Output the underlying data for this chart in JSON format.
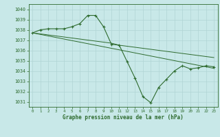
{
  "xlabel": "Graphe pression niveau de la mer (hPa)",
  "x": [
    0,
    1,
    2,
    3,
    4,
    5,
    6,
    7,
    8,
    9,
    10,
    11,
    12,
    13,
    14,
    15,
    16,
    17,
    18,
    19,
    20,
    21,
    22,
    23
  ],
  "y_main": [
    1037.7,
    1038.0,
    1038.1,
    1038.1,
    1038.1,
    1038.3,
    1038.6,
    1039.4,
    1039.4,
    1038.3,
    1036.6,
    1036.5,
    1034.9,
    1033.3,
    1031.5,
    1030.9,
    1032.4,
    1033.2,
    1034.0,
    1034.5,
    1034.2,
    1034.3,
    1034.5,
    1034.4
  ],
  "y_trend1": [
    1037.7,
    1037.6,
    1037.5,
    1037.4,
    1037.3,
    1037.2,
    1037.1,
    1037.0,
    1036.9,
    1036.8,
    1036.7,
    1036.5,
    1036.4,
    1036.3,
    1036.2,
    1036.1,
    1036.0,
    1035.9,
    1035.8,
    1035.7,
    1035.6,
    1035.5,
    1035.4,
    1035.3
  ],
  "y_trend2": [
    1037.7,
    1037.55,
    1037.4,
    1037.25,
    1037.1,
    1036.95,
    1036.8,
    1036.65,
    1036.5,
    1036.35,
    1036.2,
    1036.05,
    1035.9,
    1035.75,
    1035.6,
    1035.45,
    1035.3,
    1035.15,
    1035.0,
    1034.85,
    1034.7,
    1034.55,
    1034.4,
    1034.25
  ],
  "line_color": "#2d6a2d",
  "bg_color": "#c8e8e8",
  "grid_color": "#b0d4d4",
  "ylim_min": 1030.5,
  "ylim_max": 1040.5,
  "yticks": [
    1031,
    1032,
    1033,
    1034,
    1035,
    1036,
    1037,
    1038,
    1039,
    1040
  ],
  "xticks": [
    0,
    1,
    2,
    3,
    4,
    5,
    6,
    7,
    8,
    9,
    10,
    11,
    12,
    13,
    14,
    15,
    16,
    17,
    18,
    19,
    20,
    21,
    22,
    23
  ],
  "xlim_min": -0.5,
  "xlim_max": 23.5
}
